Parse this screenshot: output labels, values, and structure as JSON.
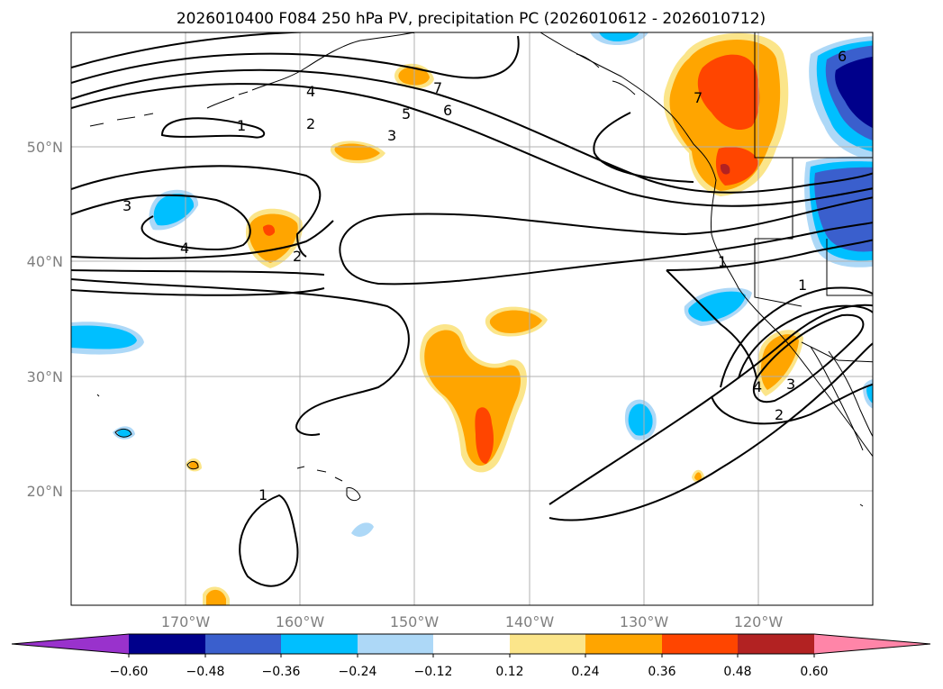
{
  "title": "2026010400 F084 250 hPa PV, precipitation PC (2026010612 - 2026010712)",
  "map": {
    "lon_range": [
      -180,
      -110
    ],
    "lat_range": [
      10,
      60
    ],
    "lat_labels": [
      "50°N",
      "40°N",
      "30°N",
      "20°N"
    ],
    "lon_labels": [
      "170°W",
      "160°W",
      "150°W",
      "140°W",
      "130°W",
      "120°W"
    ],
    "contour_labels": [
      "1",
      "1",
      "1",
      "1",
      "2",
      "2",
      "2",
      "3",
      "3",
      "3",
      "4",
      "4",
      "4",
      "5",
      "6",
      "6",
      "7",
      "7"
    ]
  },
  "colorbar": {
    "tick_labels": [
      "−0.60",
      "−0.48",
      "−0.36",
      "−0.24",
      "−0.12",
      "0.12",
      "0.24",
      "0.36",
      "0.48",
      "0.60"
    ],
    "colors": {
      "lt_neg_ext": "#9932cc",
      "neg_060": "#00008b",
      "neg_048": "#3a5fcd",
      "neg_036": "#00bfff",
      "neg_024": "#add8f7",
      "neutral": "#ffffff",
      "pos_012": "#fbe58a",
      "pos_024": "#ffa500",
      "pos_036": "#ff4500",
      "pos_048": "#b22222",
      "gt_pos_ext": "#ff85a8"
    }
  }
}
